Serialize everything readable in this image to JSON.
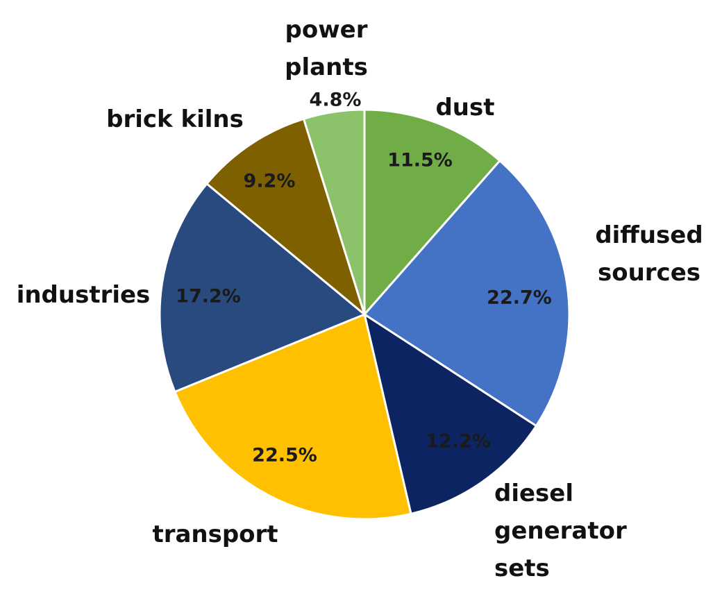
{
  "chart_data": {
    "type": "pie",
    "categories": [
      "dust",
      "diffused sources",
      "diesel generator sets",
      "transport",
      "industries",
      "brick kilns",
      "power plants"
    ],
    "values": [
      11.5,
      22.7,
      12.2,
      22.5,
      17.2,
      9.2,
      4.8
    ],
    "value_labels": [
      "11.5%",
      "22.7%",
      "12.2%",
      "22.5%",
      "17.2%",
      "9.2%",
      "4.8%"
    ],
    "colors": [
      "#70ad47",
      "#4472c4",
      "#0c2461",
      "#ffc000",
      "#284a7e",
      "#7f6000",
      "#8cc36a"
    ]
  }
}
